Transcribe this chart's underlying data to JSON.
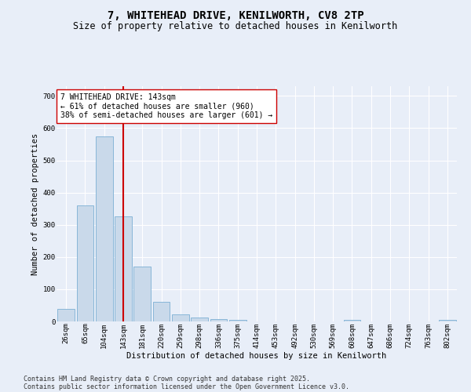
{
  "title_line1": "7, WHITEHEAD DRIVE, KENILWORTH, CV8 2TP",
  "title_line2": "Size of property relative to detached houses in Kenilworth",
  "xlabel": "Distribution of detached houses by size in Kenilworth",
  "ylabel": "Number of detached properties",
  "categories": [
    "26sqm",
    "65sqm",
    "104sqm",
    "143sqm",
    "181sqm",
    "220sqm",
    "259sqm",
    "298sqm",
    "336sqm",
    "375sqm",
    "414sqm",
    "453sqm",
    "492sqm",
    "530sqm",
    "569sqm",
    "608sqm",
    "647sqm",
    "686sqm",
    "724sqm",
    "763sqm",
    "802sqm"
  ],
  "values": [
    40,
    360,
    575,
    325,
    170,
    60,
    23,
    12,
    8,
    5,
    0,
    0,
    0,
    0,
    0,
    5,
    0,
    0,
    0,
    0,
    5
  ],
  "bar_color": "#c9d9ea",
  "bar_edge_color": "#7bafd4",
  "red_line_x": 3.5,
  "red_line_color": "#cc0000",
  "annotation_text": "7 WHITEHEAD DRIVE: 143sqm\n← 61% of detached houses are smaller (960)\n38% of semi-detached houses are larger (601) →",
  "annotation_box_color": "#ffffff",
  "annotation_box_edge": "#cc0000",
  "ylim": [
    0,
    730
  ],
  "yticks": [
    0,
    100,
    200,
    300,
    400,
    500,
    600,
    700
  ],
  "background_color": "#e8eef8",
  "grid_color": "#ffffff",
  "footer_line1": "Contains HM Land Registry data © Crown copyright and database right 2025.",
  "footer_line2": "Contains public sector information licensed under the Open Government Licence v3.0.",
  "title_fontsize": 10,
  "subtitle_fontsize": 8.5,
  "axis_label_fontsize": 7.5,
  "tick_fontsize": 6.5,
  "annotation_fontsize": 7,
  "footer_fontsize": 6
}
